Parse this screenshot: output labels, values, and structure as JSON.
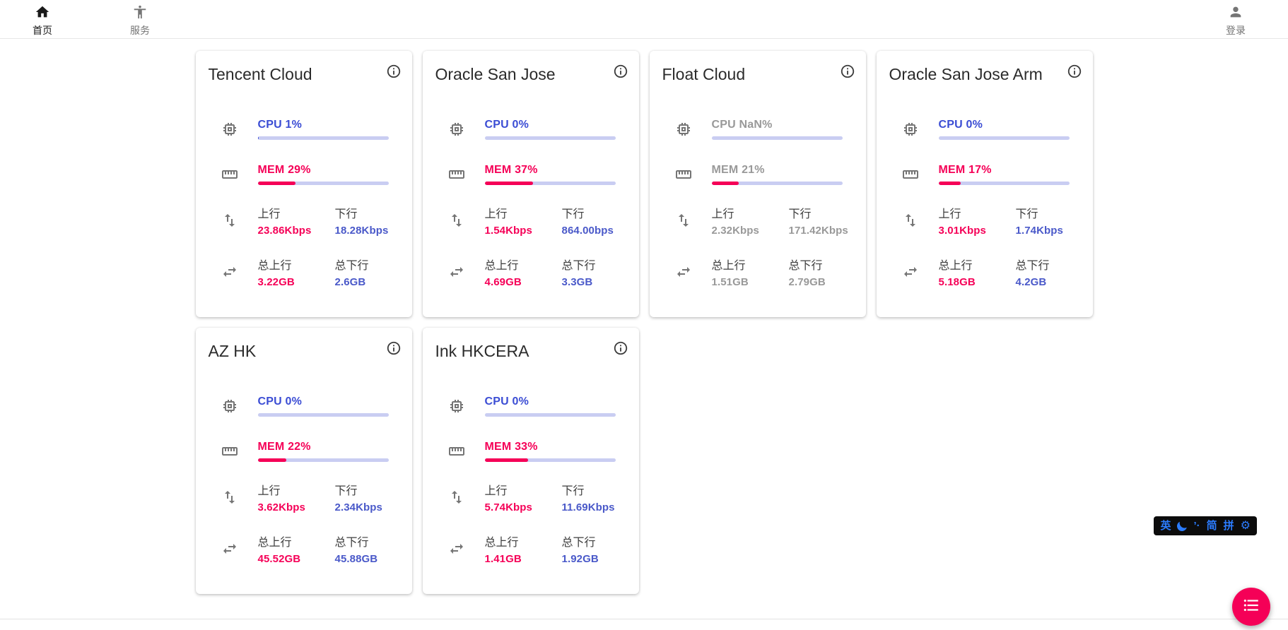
{
  "nav": {
    "home": "首页",
    "services": "服务",
    "login": "登录"
  },
  "stat_labels": {
    "up": "上行",
    "down": "下行",
    "total_up": "总上行",
    "total_down": "总下行"
  },
  "servers": [
    {
      "name": "Tencent Cloud",
      "cpu_label": "CPU 1%",
      "cpu_pct": 1,
      "mem_label": "MEM 29%",
      "mem_pct": 29,
      "up": "23.86Kbps",
      "down": "18.28Kbps",
      "total_up": "3.22GB",
      "total_down": "2.6GB",
      "offline": false
    },
    {
      "name": "Oracle San Jose",
      "cpu_label": "CPU 0%",
      "cpu_pct": 0,
      "mem_label": "MEM 37%",
      "mem_pct": 37,
      "up": "1.54Kbps",
      "down": "864.00bps",
      "total_up": "4.69GB",
      "total_down": "3.3GB",
      "offline": false
    },
    {
      "name": "Float Cloud",
      "cpu_label": "CPU NaN%",
      "cpu_pct": 0,
      "mem_label": "MEM 21%",
      "mem_pct": 21,
      "up": "2.32Kbps",
      "down": "171.42Kbps",
      "total_up": "1.51GB",
      "total_down": "2.79GB",
      "offline": true
    },
    {
      "name": "Oracle San Jose Arm",
      "cpu_label": "CPU 0%",
      "cpu_pct": 0,
      "mem_label": "MEM 17%",
      "mem_pct": 17,
      "up": "3.01Kbps",
      "down": "1.74Kbps",
      "total_up": "5.18GB",
      "total_down": "4.2GB",
      "offline": false
    },
    {
      "name": "AZ HK",
      "cpu_label": "CPU 0%",
      "cpu_pct": 0,
      "mem_label": "MEM 22%",
      "mem_pct": 22,
      "up": "3.62Kbps",
      "down": "2.34Kbps",
      "total_up": "45.52GB",
      "total_down": "45.88GB",
      "offline": false
    },
    {
      "name": "Ink HKCERA",
      "cpu_label": "CPU 0%",
      "cpu_pct": 0,
      "mem_label": "MEM 33%",
      "mem_pct": 33,
      "up": "5.74Kbps",
      "down": "11.69Kbps",
      "total_up": "1.41GB",
      "total_down": "1.92GB",
      "offline": false
    }
  ],
  "ime_bar": {
    "en": "英",
    "punct": "’·",
    "simplified": "简",
    "pinyin": "拼",
    "gear": "⚙"
  },
  "colors": {
    "accent_blue": "#3b4dd4",
    "value_blue": "#4a59c9",
    "accent_pink": "#f50057",
    "bar_track": "#c9cdf2",
    "offline_gray": "#999999"
  }
}
